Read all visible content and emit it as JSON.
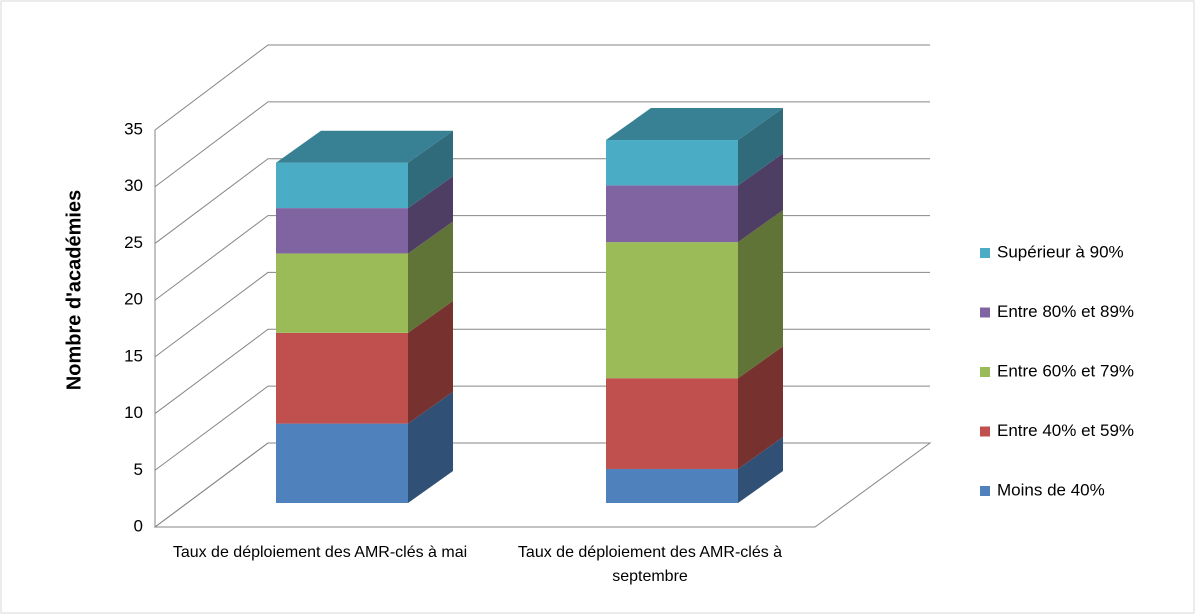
{
  "chart_data": {
    "type": "bar3d_stacked",
    "y_label": "Nombre d'académies",
    "categories": [
      "Taux de déploiement des AMR-clés à mai",
      "Taux de déploiement des AMR-clés à septembre"
    ],
    "series": [
      {
        "name": "Moins de 40%",
        "color": "#4f81bd",
        "values": [
          7,
          3
        ]
      },
      {
        "name": "Entre 40% et 59%",
        "color": "#c0504d",
        "values": [
          8,
          8
        ]
      },
      {
        "name": "Entre 60% et 79%",
        "color": "#9bbb59",
        "values": [
          7,
          12
        ]
      },
      {
        "name": "Entre 80% et 89%",
        "color": "#8064a2",
        "values": [
          4,
          5
        ]
      },
      {
        "name": "Supérieur à 90%",
        "color": "#4bacc6",
        "values": [
          4,
          4
        ]
      }
    ],
    "ylim": [
      0,
      35
    ],
    "yticks": [
      0,
      5,
      10,
      15,
      20,
      25,
      30,
      35
    ],
    "grid": true,
    "legend": "right"
  }
}
